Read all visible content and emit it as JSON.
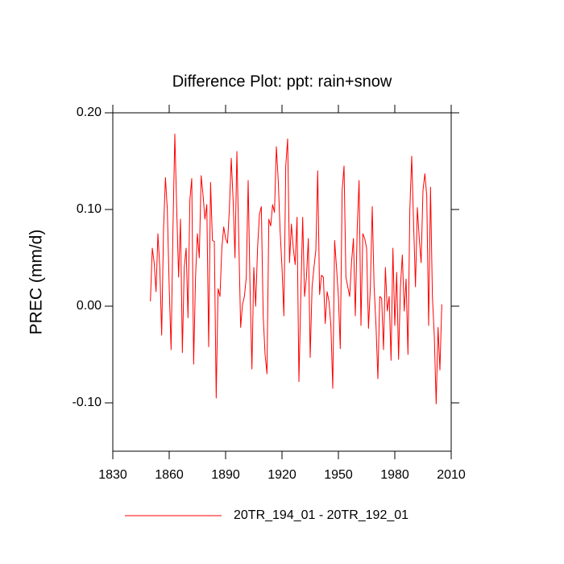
{
  "chart_data": {
    "type": "line",
    "title": "Difference Plot: ppt: rain+snow",
    "y_label": "PREC  (mm/d)",
    "x": [
      1850,
      1851,
      1852,
      1853,
      1854,
      1855,
      1856,
      1857,
      1858,
      1859,
      1860,
      1861,
      1862,
      1863,
      1864,
      1865,
      1866,
      1867,
      1868,
      1869,
      1870,
      1871,
      1872,
      1873,
      1874,
      1875,
      1876,
      1877,
      1878,
      1879,
      1880,
      1881,
      1882,
      1883,
      1884,
      1885,
      1886,
      1887,
      1888,
      1889,
      1890,
      1891,
      1892,
      1893,
      1894,
      1895,
      1896,
      1897,
      1898,
      1899,
      1900,
      1901,
      1902,
      1903,
      1904,
      1905,
      1906,
      1907,
      1908,
      1909,
      1910,
      1911,
      1912,
      1913,
      1914,
      1915,
      1916,
      1917,
      1918,
      1919,
      1920,
      1921,
      1922,
      1923,
      1924,
      1925,
      1926,
      1927,
      1928,
      1929,
      1930,
      1931,
      1932,
      1933,
      1934,
      1935,
      1936,
      1937,
      1938,
      1939,
      1940,
      1941,
      1942,
      1943,
      1944,
      1945,
      1946,
      1947,
      1948,
      1949,
      1950,
      1951,
      1952,
      1953,
      1954,
      1955,
      1956,
      1957,
      1958,
      1959,
      1960,
      1961,
      1962,
      1963,
      1964,
      1965,
      1966,
      1967,
      1968,
      1969,
      1970,
      1971,
      1972,
      1973,
      1974,
      1975,
      1976,
      1977,
      1978,
      1979,
      1980,
      1981,
      1982,
      1983,
      1984,
      1985,
      1986,
      1987,
      1988,
      1989,
      1990,
      1991,
      1992,
      1993,
      1994,
      1995,
      1996,
      1997,
      1998,
      1999,
      2000,
      2001,
      2002,
      2003,
      2004,
      2005
    ],
    "series": [
      {
        "name": "20TR_194_01 - 20TR_192_01",
        "color": "#ff0000",
        "values": [
          0.005,
          0.06,
          0.045,
          0.015,
          0.075,
          0.04,
          -0.03,
          0.08,
          0.133,
          0.1,
          0.02,
          -0.045,
          0.08,
          0.178,
          0.1,
          0.03,
          0.09,
          -0.048,
          0.04,
          0.06,
          -0.012,
          0.11,
          0.132,
          -0.06,
          0.03,
          0.075,
          0.05,
          0.135,
          0.115,
          0.09,
          0.105,
          -0.042,
          0.128,
          0.068,
          0.067,
          -0.095,
          0.018,
          0.01,
          0.06,
          0.082,
          0.07,
          0.065,
          0.1,
          0.153,
          0.11,
          0.05,
          0.16,
          0.07,
          -0.022,
          0.002,
          0.01,
          0.03,
          0.13,
          0.02,
          -0.065,
          0.04,
          0.0,
          0.06,
          0.095,
          0.103,
          -0.01,
          -0.05,
          -0.07,
          0.09,
          0.083,
          0.105,
          0.097,
          0.165,
          0.13,
          0.078,
          0.04,
          -0.01,
          0.145,
          0.173,
          0.045,
          0.085,
          0.06,
          0.043,
          0.092,
          -0.078,
          0.01,
          0.092,
          0.01,
          0.03,
          0.07,
          -0.053,
          0.02,
          0.04,
          0.058,
          0.14,
          0.012,
          0.032,
          0.03,
          -0.018,
          0.015,
          0.005,
          -0.02,
          -0.085,
          0.068,
          0.04,
          0.01,
          -0.044,
          0.12,
          0.145,
          0.03,
          0.02,
          0.01,
          0.046,
          0.07,
          -0.01,
          0.08,
          0.13,
          -0.02,
          0.075,
          0.07,
          0.06,
          -0.023,
          0.02,
          0.103,
          0.02,
          -0.02,
          -0.075,
          0.01,
          0.008,
          -0.045,
          0.04,
          -0.005,
          0.01,
          -0.056,
          0.06,
          -0.02,
          0.035,
          -0.055,
          0.02,
          0.053,
          -0.005,
          0.028,
          -0.05,
          0.1,
          0.155,
          0.085,
          0.02,
          0.102,
          0.07,
          0.045,
          0.12,
          0.137,
          0.114,
          -0.02,
          0.123,
          0.01,
          -0.03,
          -0.101,
          -0.022,
          -0.066,
          0.002
        ]
      }
    ],
    "xlim": [
      1830,
      2010
    ],
    "xticks": [
      1830,
      1860,
      1890,
      1920,
      1950,
      1980,
      2010
    ],
    "ylim": [
      -0.15,
      0.2
    ],
    "yticks": [
      {
        "value": -0.1,
        "label": "-0.10"
      },
      {
        "value": 0,
        "label": "0.00"
      },
      {
        "value": 0.1,
        "label": "0.10"
      },
      {
        "value": 0.2,
        "label": "0.20"
      }
    ],
    "legend": "bottom"
  }
}
